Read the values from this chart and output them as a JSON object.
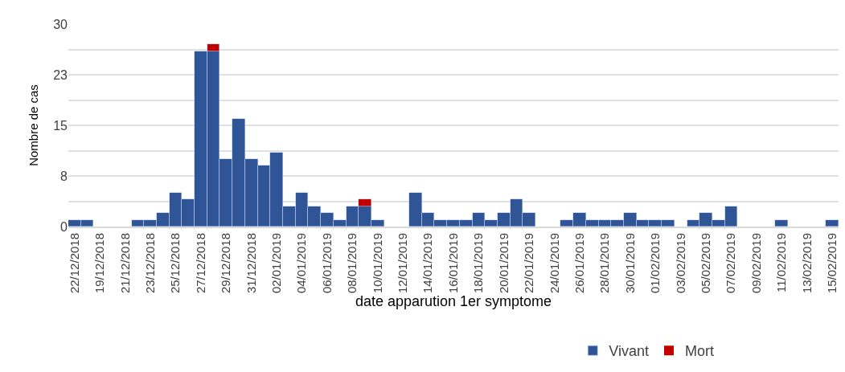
{
  "chart_data": {
    "type": "bar",
    "stacked": true,
    "xlabel": "date apparution 1er symptome",
    "ylabel": "Nombre de cas",
    "categories": [
      "22/12/2018",
      null,
      "19/12/2018",
      null,
      "21/12/2018",
      null,
      "23/12/2018",
      null,
      "25/12/2018",
      null,
      "27/12/2018",
      null,
      "29/12/2018",
      null,
      "31/12/2018",
      null,
      "02/01/2019",
      null,
      "04/01/2019",
      null,
      "06/01/2019",
      null,
      "08/01/2019",
      null,
      "10/01/2019",
      null,
      "12/01/2019",
      null,
      "14/01/2019",
      null,
      "16/01/2019",
      null,
      "18/01/2019",
      null,
      "20/01/2019",
      null,
      "22/01/2019",
      null,
      "24/01/2019",
      null,
      "26/01/2019",
      null,
      "28/01/2019",
      null,
      "30/01/2019",
      null,
      "01/02/2019",
      null,
      "03/02/2019",
      null,
      "05/02/2019",
      null,
      "07/02/2019",
      null,
      "09/02/2019",
      null,
      "11/02/2019",
      null,
      "13/02/2019",
      null,
      "15/02/2019"
    ],
    "series": [
      {
        "name": "Vivant",
        "color": "#2f5597",
        "values": [
          1,
          1,
          0,
          0,
          0,
          1,
          1,
          2,
          5,
          4,
          26,
          26,
          10,
          16,
          10,
          9,
          11,
          3,
          5,
          3,
          2,
          1,
          3,
          3,
          1,
          0,
          0,
          5,
          2,
          1,
          1,
          1,
          2,
          1,
          2,
          4,
          2,
          0,
          0,
          1,
          2,
          1,
          1,
          1,
          2,
          1,
          1,
          1,
          0,
          1,
          2,
          1,
          3,
          0,
          0,
          0,
          1,
          0,
          0,
          0,
          1
        ]
      },
      {
        "name": "Mort",
        "color": "#c00000",
        "values": [
          0,
          0,
          0,
          0,
          0,
          0,
          0,
          0,
          0,
          0,
          0,
          1,
          0,
          0,
          0,
          0,
          0,
          0,
          0,
          0,
          0,
          0,
          0,
          1,
          0,
          0,
          0,
          0,
          0,
          0,
          0,
          0,
          0,
          0,
          0,
          0,
          0,
          0,
          0,
          0,
          0,
          0,
          0,
          0,
          0,
          0,
          0,
          0,
          0,
          0,
          0,
          0,
          0,
          0,
          0,
          0,
          0,
          0,
          0,
          0,
          0
        ]
      }
    ],
    "ylim": [
      0,
      30
    ],
    "yticks": [
      0,
      {
        "value": 3.75,
        "label": null
      },
      {
        "value": 7.5,
        "label": "8"
      },
      {
        "value": 11.25,
        "label": null
      },
      15,
      {
        "value": 18.75,
        "label": null
      },
      {
        "value": 22.5,
        "label": "23"
      },
      {
        "value": 26.25,
        "label": null
      },
      30
    ],
    "grid": "y",
    "legend": "bottom"
  }
}
